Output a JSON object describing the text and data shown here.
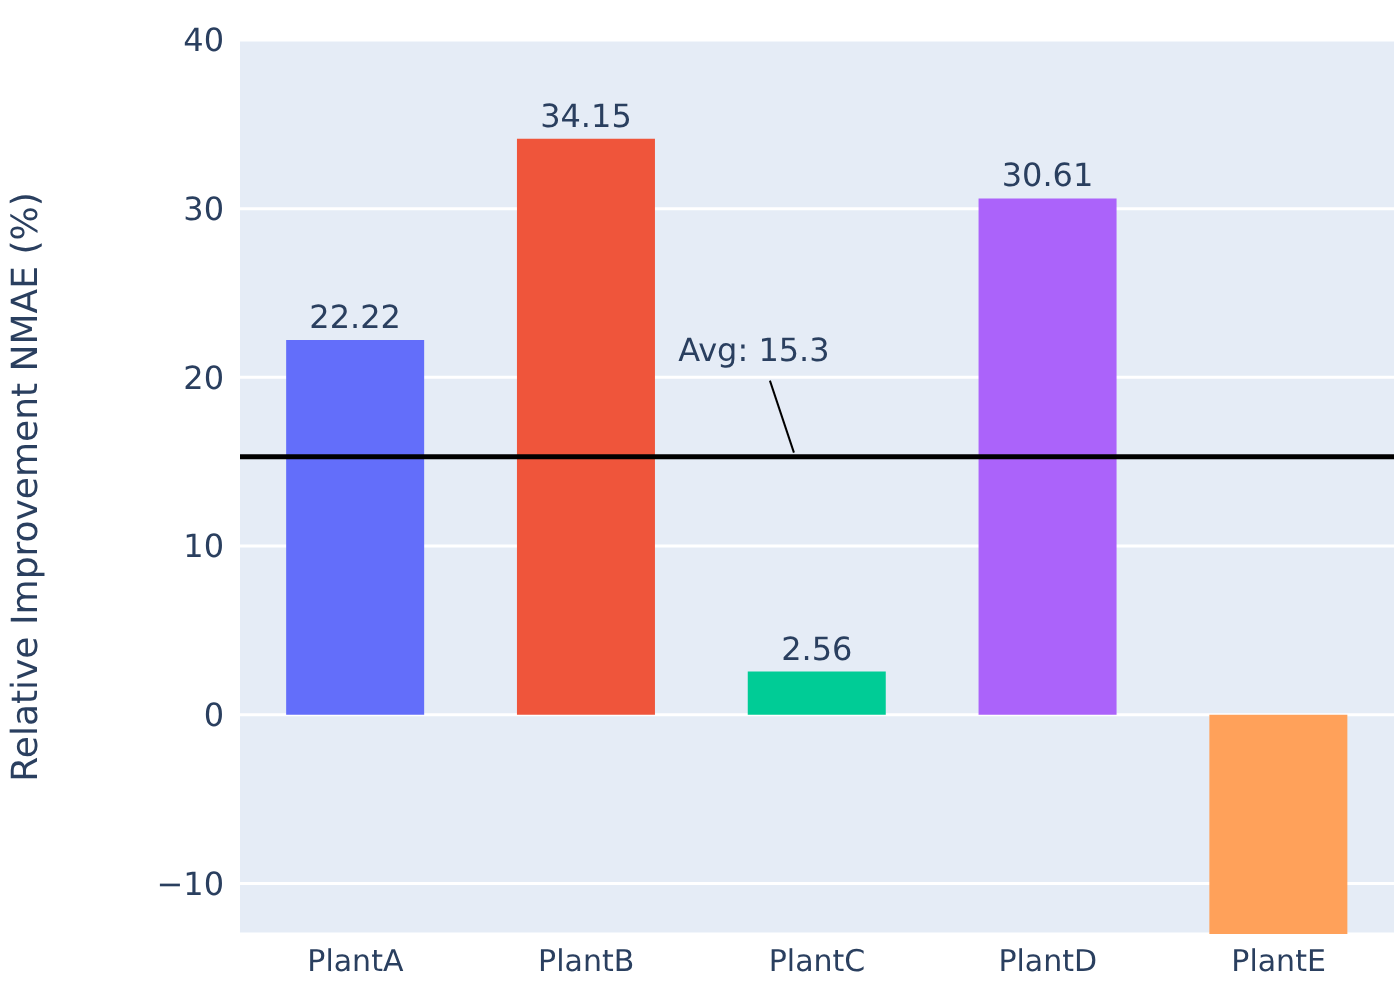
{
  "chart_data": {
    "type": "bar",
    "ylabel": "Relative Improvement NMAE (%)",
    "categories": [
      "PlantA",
      "PlantB",
      "PlantC",
      "PlantD",
      "PlantE"
    ],
    "values": [
      22.22,
      34.15,
      2.56,
      30.61,
      -13
    ],
    "colors": [
      "#636efa",
      "#ef553b",
      "#00cc96",
      "#ab63fa",
      "#ffa15a"
    ],
    "value_labels": [
      "22.22",
      "34.15",
      "2.56",
      "30.61",
      null
    ],
    "ylim": [
      -13,
      40
    ],
    "yticks": [
      -10,
      0,
      10,
      20,
      30,
      40
    ],
    "grid": "y",
    "ref_lines": [
      {
        "axis": "y",
        "value": 15.3,
        "label": "Avg: 15.3",
        "color": "#000000",
        "line_style": "solid"
      }
    ]
  }
}
